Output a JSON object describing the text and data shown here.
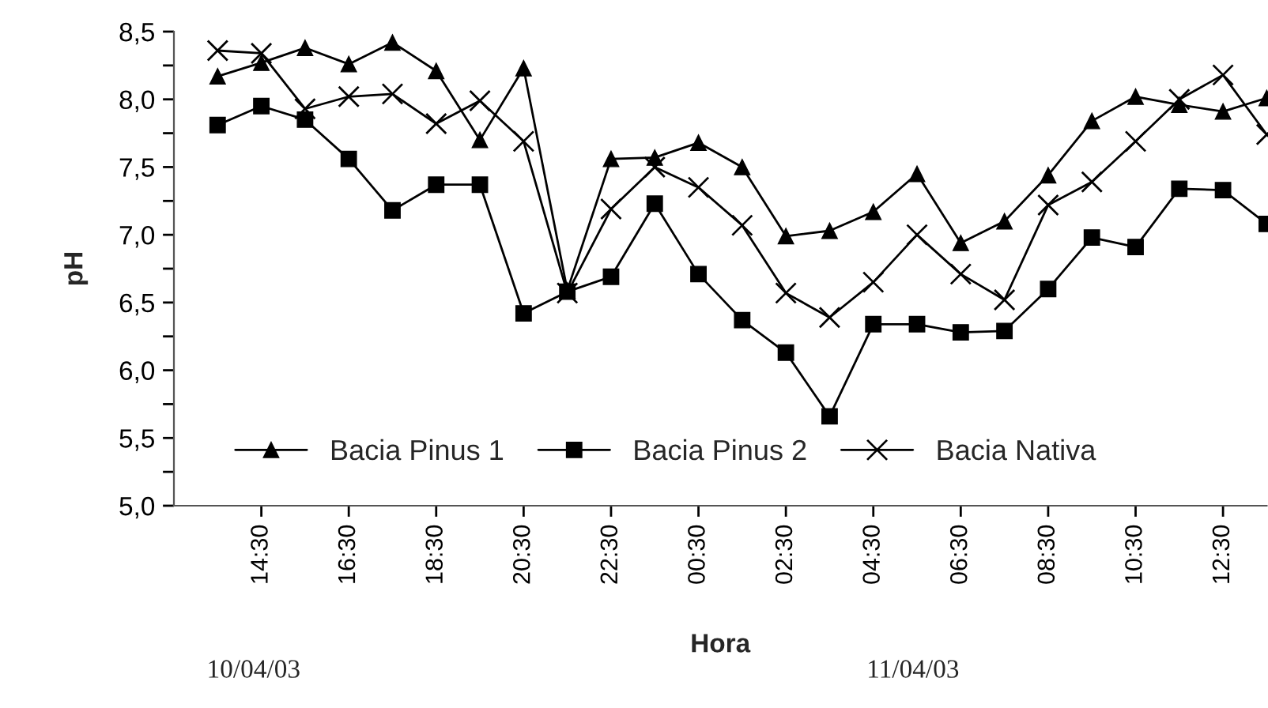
{
  "chart_data": {
    "type": "line",
    "xlabel": "Hora",
    "ylabel": "pH",
    "categories": [
      null,
      "14:30",
      null,
      "16:30",
      null,
      "18:30",
      null,
      "20:30",
      null,
      "22:30",
      null,
      "00:30",
      null,
      "02:30",
      null,
      "04:30",
      null,
      "06:30",
      null,
      "08:30",
      null,
      "10:30",
      null,
      "12:30",
      null
    ],
    "series": [
      {
        "name": "Bacia Pinus 1",
        "color": "#000000",
        "marker": "triangle",
        "values": [
          8.17,
          8.27,
          8.38,
          8.26,
          8.42,
          8.21,
          7.7,
          8.23,
          6.59,
          7.56,
          7.57,
          7.68,
          7.5,
          6.99,
          7.03,
          7.17,
          7.45,
          6.94,
          7.1,
          7.44,
          7.84,
          8.02,
          7.96,
          7.91,
          8.01
        ]
      },
      {
        "name": "Bacia Pinus 2",
        "color": "#000000",
        "marker": "square",
        "values": [
          7.81,
          7.95,
          7.85,
          7.56,
          7.18,
          7.37,
          7.37,
          6.42,
          6.58,
          6.69,
          7.23,
          6.71,
          6.37,
          6.13,
          5.66,
          6.34,
          6.34,
          6.28,
          6.29,
          6.6,
          6.98,
          6.91,
          7.34,
          7.33,
          7.08
        ]
      },
      {
        "name": "Bacia Nativa",
        "color": "#000000",
        "marker": "cross",
        "values": [
          8.36,
          8.34,
          7.93,
          8.02,
          8.04,
          7.82,
          7.99,
          7.69,
          6.57,
          7.19,
          7.5,
          7.35,
          7.07,
          6.57,
          6.39,
          6.65,
          7.0,
          6.71,
          6.52,
          7.22,
          7.39,
          7.69,
          8.0,
          8.18,
          7.74
        ]
      }
    ],
    "ylim": [
      5.0,
      8.5
    ],
    "yticks": [
      {
        "value": 5.0,
        "label": "5,0"
      },
      {
        "value": 5.25,
        "label": null
      },
      {
        "value": 5.5,
        "label": "5,5"
      },
      {
        "value": 5.75,
        "label": null
      },
      {
        "value": 6.0,
        "label": "6,0"
      },
      {
        "value": 6.25,
        "label": null
      },
      {
        "value": 6.5,
        "label": "6,5"
      },
      {
        "value": 6.75,
        "label": null
      },
      {
        "value": 7.0,
        "label": "7,0"
      },
      {
        "value": 7.25,
        "label": null
      },
      {
        "value": 7.5,
        "label": "7,5"
      },
      {
        "value": 7.75,
        "label": null
      },
      {
        "value": 8.0,
        "label": "8,0"
      },
      {
        "value": 8.25,
        "label": null
      },
      {
        "value": 8.5,
        "label": "8,5"
      }
    ],
    "annotations": [
      "10/04/03",
      "11/04/03"
    ],
    "legend": "bottom",
    "grid": false,
    "line_style": "solid"
  }
}
